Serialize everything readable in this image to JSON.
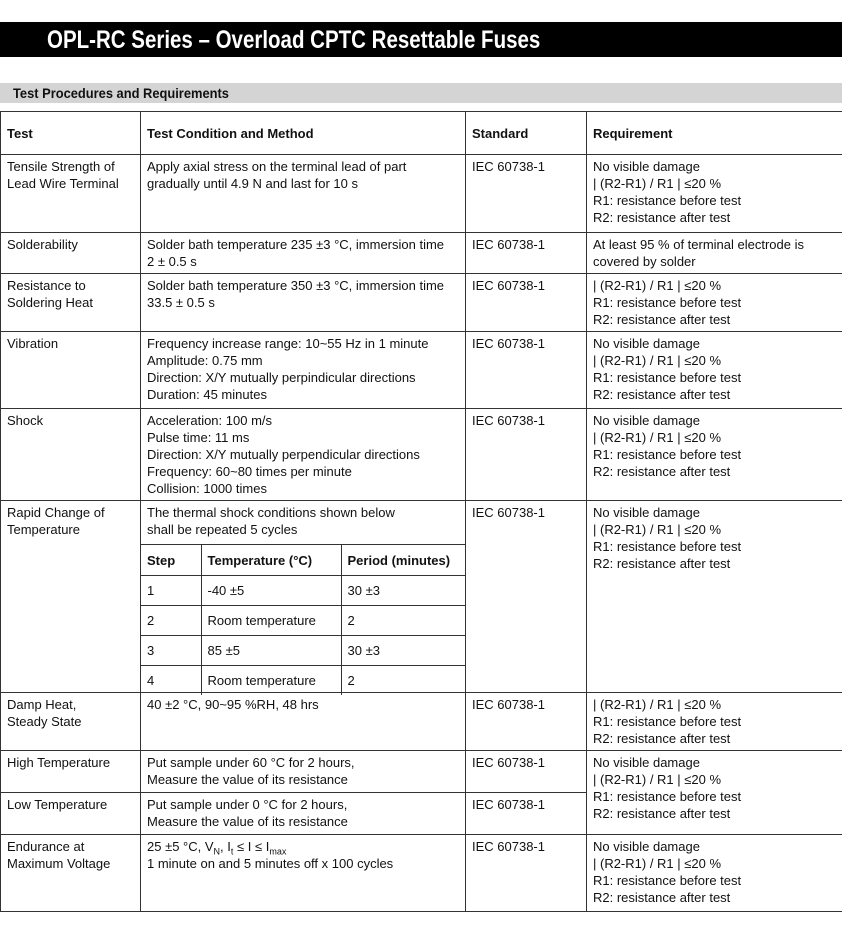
{
  "title": "OPL-RC Series – Overload CPTC Resettable Fuses",
  "section": "Test Procedures and Requirements",
  "headers": {
    "test": "Test",
    "condition": "Test Condition and Method",
    "standard": "Standard",
    "requirement": "Requirement"
  },
  "rows": [
    {
      "test": [
        "Tensile Strength of",
        "Lead Wire Terminal"
      ],
      "condition": [
        "Apply axial stress on the terminal lead of part",
        "gradually until 4.9 N and last for 10 s"
      ],
      "standard": "IEC 60738-1",
      "requirement": [
        "No visible damage",
        "| (R2-R1) / R1 | ≤20 %",
        "R1: resistance before test",
        "R2: resistance after test"
      ]
    },
    {
      "test": [
        "Solderability"
      ],
      "condition": [
        "Solder bath temperature 235 ±3 °C, immersion time",
        "2 ± 0.5 s"
      ],
      "standard": "IEC 60738-1",
      "requirement": [
        "At least 95 % of terminal electrode is",
        "covered by solder"
      ]
    },
    {
      "test": [
        "Resistance to",
        "Soldering Heat"
      ],
      "condition": [
        "Solder bath temperature 350 ±3 °C, immersion time",
        "33.5 ± 0.5 s"
      ],
      "standard": "IEC 60738-1",
      "requirement": [
        "| (R2-R1) / R1 | ≤20 %",
        "R1: resistance before test",
        "R2: resistance after test"
      ]
    },
    {
      "test": [
        "Vibration"
      ],
      "condition": [
        "Frequency increase range: 10~55 Hz in 1 minute",
        "Amplitude: 0.75 mm",
        "Direction: X/Y mutually perpindicular directions",
        "Duration: 45 minutes"
      ],
      "standard": "IEC 60738-1",
      "requirement": [
        "No visible damage",
        "| (R2-R1) / R1 | ≤20 %",
        "R1: resistance before test",
        "R2: resistance after test"
      ]
    },
    {
      "test": [
        "Shock"
      ],
      "condition": [
        "Acceleration: 100 m/s",
        "Pulse time: 11 ms",
        "Direction: X/Y mutually perpendicular directions",
        "Frequency: 60~80 times per minute",
        "Collision: 1000 times"
      ],
      "standard": "IEC 60738-1",
      "requirement": [
        "No visible damage",
        "| (R2-R1) / R1 | ≤20 %",
        "R1: resistance before test",
        "R2: resistance after test"
      ]
    },
    {
      "test": [
        "Rapid Change of",
        "Temperature"
      ],
      "condition": [
        "The thermal shock conditions shown below",
        "shall be repeated 5 cycles"
      ],
      "standard": "IEC 60738-1",
      "requirement": [
        "No visible damage",
        "| (R2-R1) / R1 | ≤20 %",
        "R1: resistance before test",
        "R2: resistance after test"
      ],
      "steps": {
        "headers": [
          "Step",
          "Temperature (°C)",
          "Period (minutes)"
        ],
        "rows": [
          [
            "1",
            "-40 ±5",
            "30 ±3"
          ],
          [
            "2",
            "Room temperature",
            "2"
          ],
          [
            "3",
            "85 ±5",
            "30 ±3"
          ],
          [
            "4",
            "Room temperature",
            "2"
          ]
        ]
      }
    },
    {
      "test": [
        "Damp Heat,",
        "Steady State"
      ],
      "condition": [
        "40 ±2 °C, 90~95 %RH, 48 hrs"
      ],
      "standard": "IEC 60738-1",
      "requirement": [
        "| (R2-R1) / R1 | ≤20 %",
        "R1: resistance before test",
        "R2: resistance after test"
      ]
    },
    {
      "test": [
        "High Temperature"
      ],
      "condition": [
        "Put sample under 60 °C for 2 hours,",
        "Measure the value of its resistance"
      ],
      "standard": "IEC 60738-1",
      "requirement": [
        "No visible damage",
        "| (R2-R1) / R1 | ≤20 %",
        "R1: resistance before test",
        "R2: resistance after test"
      ]
    },
    {
      "test": [
        "Low Temperature"
      ],
      "condition": [
        "Put sample under 0 °C for 2 hours,",
        "Measure the value of its resistance"
      ],
      "standard": "IEC 60738-1"
    },
    {
      "test": [
        "Endurance at",
        "Maximum Voltage"
      ],
      "condition_parts": {
        "a": "25 ±5 °C, V",
        "b": "N",
        "c": ", I",
        "d": "t",
        "e": " ≤ I ≤ I",
        "f": "max"
      },
      "condition": [
        "1 minute on and 5 minutes off x 100 cycles"
      ],
      "standard": "IEC 60738-1",
      "requirement": [
        "No visible damage",
        "| (R2-R1) / R1 | ≤20 %",
        "R1: resistance before test",
        "R2: resistance after test"
      ]
    }
  ]
}
